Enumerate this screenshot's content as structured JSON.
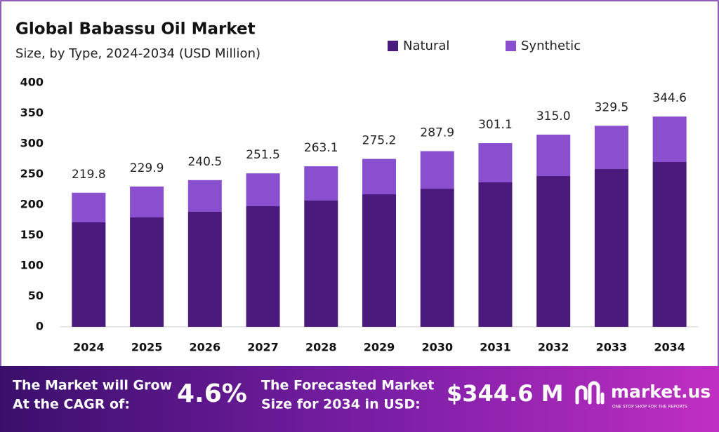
{
  "chart_data": {
    "type": "stacked_bar",
    "title": "Global Babassu Oil Market",
    "subtitle": "Size, by Type, 2024-2034 (USD Million)",
    "categories": [
      "2024",
      "2025",
      "2026",
      "2027",
      "2028",
      "2029",
      "2030",
      "2031",
      "2032",
      "2033",
      "2034"
    ],
    "series": [
      {
        "name": "Natural",
        "color": "#4a1a7c",
        "values": [
          171.3,
          179.3,
          188.5,
          197.7,
          206.9,
          217.2,
          226.4,
          236.8,
          247.1,
          258.6,
          270.1
        ]
      },
      {
        "name": "Synthetic",
        "color": "#8a4fce",
        "values": [
          48.5,
          50.6,
          52.0,
          53.8,
          56.2,
          58.0,
          61.5,
          64.3,
          67.9,
          70.9,
          74.5
        ]
      }
    ],
    "totals": [
      219.8,
      229.9,
      240.5,
      251.5,
      263.1,
      275.2,
      287.9,
      301.1,
      {
        "value": 315.0,
        "label": "315.0"
      },
      329.5,
      344.6
    ],
    "ylim": [
      0,
      400
    ],
    "yticks": [
      0,
      50,
      100,
      150,
      200,
      250,
      300,
      350,
      400
    ],
    "grid": false
  },
  "banner": {
    "cagr_text": [
      "The Market will Grow",
      "At the CAGR of:"
    ],
    "cagr_value": "4.6%",
    "forecast_text": [
      "The Forecasted Market",
      "Size for 2034 in USD:"
    ],
    "forecast_value": "$344.6 M",
    "brand": "market.us",
    "tagline": "ONE STOP SHOP FOR THE REPORTS"
  }
}
